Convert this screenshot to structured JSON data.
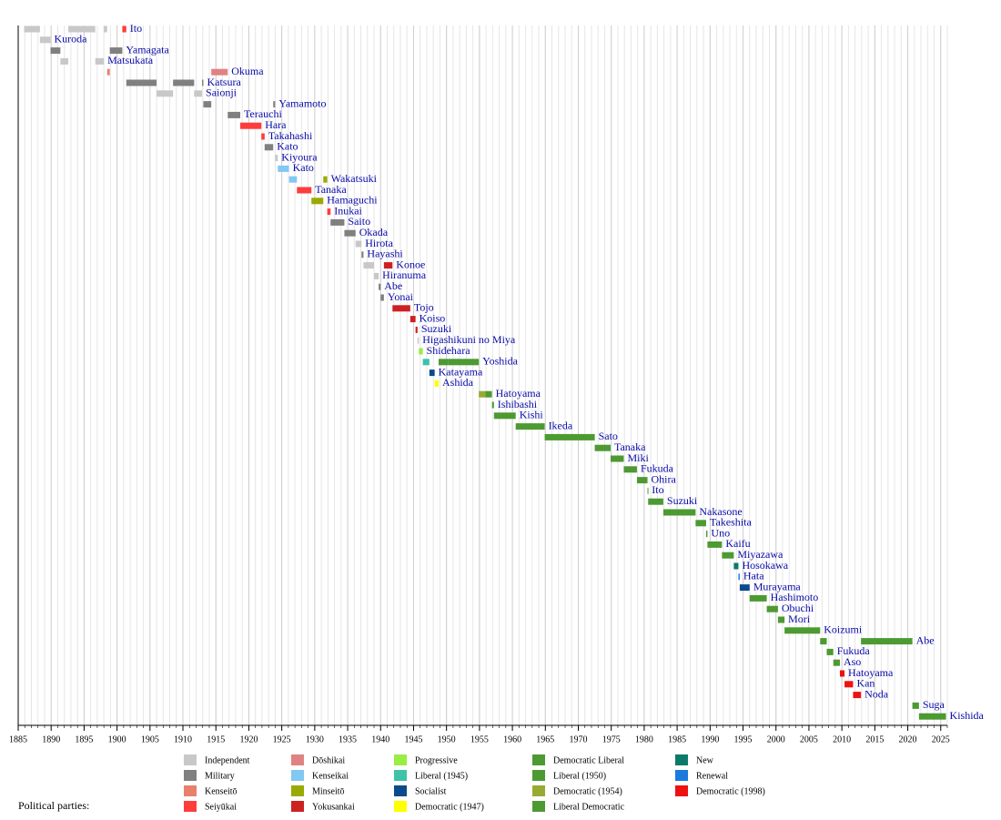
{
  "chart_data": {
    "type": "timeline",
    "xlim": [
      1885,
      2026
    ],
    "xticks": [
      1885,
      1890,
      1895,
      1900,
      1905,
      1910,
      1915,
      1920,
      1925,
      1930,
      1935,
      1940,
      1945,
      1950,
      1955,
      1960,
      1965,
      1970,
      1975,
      1980,
      1985,
      1990,
      1995,
      2000,
      2005,
      2010,
      2015,
      2020,
      2025
    ],
    "minor_grid": true,
    "legend_title": "Political parties:",
    "parties": [
      {
        "name": "Independent",
        "color": "#c8c8c8"
      },
      {
        "name": "Military",
        "color": "#808080"
      },
      {
        "name": "Kenseitō",
        "color": "#e8806c"
      },
      {
        "name": "Seiyūkai",
        "color": "#ff3c3c"
      },
      {
        "name": "Dōshikai",
        "color": "#e08282"
      },
      {
        "name": "Kenseikai",
        "color": "#82c8f2"
      },
      {
        "name": "Minseitō",
        "color": "#99aa00"
      },
      {
        "name": "Yokusankai",
        "color": "#cc2222"
      },
      {
        "name": "Progressive",
        "color": "#99ee44"
      },
      {
        "name": "Liberal (1945)",
        "color": "#3cc3aa"
      },
      {
        "name": "Socialist",
        "color": "#0b4a8c"
      },
      {
        "name": "Democratic (1947)",
        "color": "#ffff00"
      },
      {
        "name": "Democratic Liberal",
        "color": "#4d9a33"
      },
      {
        "name": "Liberal (1950)",
        "color": "#4d9a33"
      },
      {
        "name": "Democratic (1954)",
        "color": "#99aa33"
      },
      {
        "name": "Liberal Democratic",
        "color": "#4d9a33"
      },
      {
        "name": "New",
        "color": "#0b7a6a"
      },
      {
        "name": "Renewal",
        "color": "#1a7ade"
      },
      {
        "name": "Democratic (1998)",
        "color": "#ee1111"
      }
    ],
    "rows": [
      {
        "label": "Ito",
        "segments": [
          {
            "start": 1885.9,
            "end": 1888.3,
            "party": "Independent"
          },
          {
            "start": 1892.6,
            "end": 1896.7,
            "party": "Independent"
          },
          {
            "start": 1898.0,
            "end": 1898.5,
            "party": "Independent"
          },
          {
            "start": 1900.8,
            "end": 1901.4,
            "party": "Seiyūkai"
          }
        ]
      },
      {
        "label": "Kuroda",
        "segments": [
          {
            "start": 1888.3,
            "end": 1889.9,
            "party": "Independent"
          }
        ]
      },
      {
        "label": "Yamagata",
        "segments": [
          {
            "start": 1889.9,
            "end": 1891.4,
            "party": "Military"
          },
          {
            "start": 1898.9,
            "end": 1900.8,
            "party": "Military"
          }
        ]
      },
      {
        "label": "Matsukata",
        "segments": [
          {
            "start": 1891.4,
            "end": 1892.6,
            "party": "Independent"
          },
          {
            "start": 1896.7,
            "end": 1898.0,
            "party": "Independent"
          }
        ]
      },
      {
        "label": "Okuma",
        "segments": [
          {
            "start": 1898.5,
            "end": 1898.9,
            "party": "Kenseitō"
          },
          {
            "start": 1914.3,
            "end": 1916.8,
            "party": "Dōshikai"
          }
        ]
      },
      {
        "label": "Katsura",
        "segments": [
          {
            "start": 1901.4,
            "end": 1906.0,
            "party": "Military"
          },
          {
            "start": 1908.5,
            "end": 1911.7,
            "party": "Military"
          },
          {
            "start": 1912.9,
            "end": 1913.1,
            "party": "Military"
          }
        ]
      },
      {
        "label": "Saionji",
        "segments": [
          {
            "start": 1906.0,
            "end": 1908.5,
            "party": "Independent"
          },
          {
            "start": 1911.7,
            "end": 1912.9,
            "party": "Independent"
          }
        ]
      },
      {
        "label": "Yamamoto",
        "segments": [
          {
            "start": 1913.1,
            "end": 1914.3,
            "party": "Military"
          },
          {
            "start": 1923.7,
            "end": 1924.0,
            "party": "Military"
          }
        ]
      },
      {
        "label": "Terauchi",
        "segments": [
          {
            "start": 1916.8,
            "end": 1918.7,
            "party": "Military"
          }
        ]
      },
      {
        "label": "Hara",
        "segments": [
          {
            "start": 1918.7,
            "end": 1921.9,
            "party": "Seiyūkai"
          }
        ]
      },
      {
        "label": "Takahashi",
        "segments": [
          {
            "start": 1921.9,
            "end": 1922.4,
            "party": "Seiyūkai"
          }
        ]
      },
      {
        "label": "Kato",
        "segments": [
          {
            "start": 1922.4,
            "end": 1923.7,
            "party": "Military"
          }
        ]
      },
      {
        "label": "Kiyoura",
        "segments": [
          {
            "start": 1924.0,
            "end": 1924.4,
            "party": "Independent"
          }
        ]
      },
      {
        "label": "Kato",
        "segments": [
          {
            "start": 1924.4,
            "end": 1926.1,
            "party": "Kenseikai"
          }
        ]
      },
      {
        "label": "Wakatsuki",
        "segments": [
          {
            "start": 1926.1,
            "end": 1927.3,
            "party": "Kenseikai"
          },
          {
            "start": 1931.3,
            "end": 1931.9,
            "party": "Minseitō"
          }
        ]
      },
      {
        "label": "Tanaka",
        "segments": [
          {
            "start": 1927.3,
            "end": 1929.5,
            "party": "Seiyūkai"
          }
        ]
      },
      {
        "label": "Hamaguchi",
        "segments": [
          {
            "start": 1929.5,
            "end": 1931.3,
            "party": "Minseitō"
          }
        ]
      },
      {
        "label": "Inukai",
        "segments": [
          {
            "start": 1931.9,
            "end": 1932.4,
            "party": "Seiyūkai"
          }
        ]
      },
      {
        "label": "Saito",
        "segments": [
          {
            "start": 1932.4,
            "end": 1934.5,
            "party": "Military"
          }
        ]
      },
      {
        "label": "Okada",
        "segments": [
          {
            "start": 1934.5,
            "end": 1936.2,
            "party": "Military"
          }
        ]
      },
      {
        "label": "Hirota",
        "segments": [
          {
            "start": 1936.2,
            "end": 1937.1,
            "party": "Independent"
          }
        ]
      },
      {
        "label": "Hayashi",
        "segments": [
          {
            "start": 1937.1,
            "end": 1937.4,
            "party": "Military"
          }
        ]
      },
      {
        "label": "Konoe",
        "segments": [
          {
            "start": 1937.4,
            "end": 1939.0,
            "party": "Independent"
          },
          {
            "start": 1940.5,
            "end": 1941.8,
            "party": "Yokusankai"
          }
        ]
      },
      {
        "label": "Hiranuma",
        "segments": [
          {
            "start": 1939.0,
            "end": 1939.7,
            "party": "Independent"
          }
        ]
      },
      {
        "label": "Abe",
        "segments": [
          {
            "start": 1939.7,
            "end": 1940.0,
            "party": "Military"
          }
        ]
      },
      {
        "label": "Yonai",
        "segments": [
          {
            "start": 1940.0,
            "end": 1940.5,
            "party": "Military"
          }
        ]
      },
      {
        "label": "Tojo",
        "segments": [
          {
            "start": 1941.8,
            "end": 1944.5,
            "party": "Yokusankai"
          }
        ]
      },
      {
        "label": "Koiso",
        "segments": [
          {
            "start": 1944.5,
            "end": 1945.3,
            "party": "Yokusankai"
          }
        ]
      },
      {
        "label": "Suzuki",
        "segments": [
          {
            "start": 1945.3,
            "end": 1945.6,
            "party": "Yokusankai"
          }
        ]
      },
      {
        "label": "Higashikuni no Miya",
        "segments": [
          {
            "start": 1945.6,
            "end": 1945.8,
            "party": "Independent"
          }
        ]
      },
      {
        "label": "Shidehara",
        "segments": [
          {
            "start": 1945.8,
            "end": 1946.4,
            "party": "Progressive"
          }
        ]
      },
      {
        "label": "Yoshida",
        "segments": [
          {
            "start": 1946.4,
            "end": 1947.4,
            "party": "Liberal (1945)"
          },
          {
            "start": 1948.8,
            "end": 1950.2,
            "party": "Democratic Liberal"
          },
          {
            "start": 1950.2,
            "end": 1954.9,
            "party": "Liberal (1950)"
          }
        ]
      },
      {
        "label": "Katayama",
        "segments": [
          {
            "start": 1947.4,
            "end": 1948.2,
            "party": "Socialist"
          }
        ]
      },
      {
        "label": "Ashida",
        "segments": [
          {
            "start": 1948.2,
            "end": 1948.8,
            "party": "Democratic (1947)"
          }
        ]
      },
      {
        "label": "Hatoyama",
        "segments": [
          {
            "start": 1954.9,
            "end": 1955.9,
            "party": "Democratic (1954)"
          },
          {
            "start": 1955.9,
            "end": 1956.9,
            "party": "Liberal Democratic"
          }
        ]
      },
      {
        "label": "Ishibashi",
        "segments": [
          {
            "start": 1956.9,
            "end": 1957.2,
            "party": "Liberal Democratic"
          }
        ]
      },
      {
        "label": "Kishi",
        "segments": [
          {
            "start": 1957.2,
            "end": 1960.5,
            "party": "Liberal Democratic"
          }
        ]
      },
      {
        "label": "Ikeda",
        "segments": [
          {
            "start": 1960.5,
            "end": 1964.9,
            "party": "Liberal Democratic"
          }
        ]
      },
      {
        "label": "Sato",
        "segments": [
          {
            "start": 1964.9,
            "end": 1972.5,
            "party": "Liberal Democratic"
          }
        ]
      },
      {
        "label": "Tanaka",
        "segments": [
          {
            "start": 1972.5,
            "end": 1974.9,
            "party": "Liberal Democratic"
          }
        ]
      },
      {
        "label": "Miki",
        "segments": [
          {
            "start": 1974.9,
            "end": 1976.9,
            "party": "Liberal Democratic"
          }
        ]
      },
      {
        "label": "Fukuda",
        "segments": [
          {
            "start": 1976.9,
            "end": 1978.9,
            "party": "Liberal Democratic"
          }
        ]
      },
      {
        "label": "Ohira",
        "segments": [
          {
            "start": 1978.9,
            "end": 1980.5,
            "party": "Liberal Democratic"
          }
        ]
      },
      {
        "label": "Ito",
        "segments": [
          {
            "start": 1980.5,
            "end": 1980.6,
            "party": "Liberal Democratic"
          }
        ]
      },
      {
        "label": "Suzuki",
        "segments": [
          {
            "start": 1980.6,
            "end": 1982.9,
            "party": "Liberal Democratic"
          }
        ]
      },
      {
        "label": "Nakasone",
        "segments": [
          {
            "start": 1982.9,
            "end": 1987.8,
            "party": "Liberal Democratic"
          }
        ]
      },
      {
        "label": "Takeshita",
        "segments": [
          {
            "start": 1987.8,
            "end": 1989.4,
            "party": "Liberal Democratic"
          }
        ]
      },
      {
        "label": "Uno",
        "segments": [
          {
            "start": 1989.4,
            "end": 1989.6,
            "party": "Liberal Democratic"
          }
        ]
      },
      {
        "label": "Kaifu",
        "segments": [
          {
            "start": 1989.6,
            "end": 1991.8,
            "party": "Liberal Democratic"
          }
        ]
      },
      {
        "label": "Miyazawa",
        "segments": [
          {
            "start": 1991.8,
            "end": 1993.6,
            "party": "Liberal Democratic"
          }
        ]
      },
      {
        "label": "Hosokawa",
        "segments": [
          {
            "start": 1993.6,
            "end": 1994.3,
            "party": "New"
          }
        ]
      },
      {
        "label": "Hata",
        "segments": [
          {
            "start": 1994.3,
            "end": 1994.5,
            "party": "Renewal"
          }
        ]
      },
      {
        "label": "Murayama",
        "segments": [
          {
            "start": 1994.5,
            "end": 1996.0,
            "party": "Socialist"
          }
        ]
      },
      {
        "label": "Hashimoto",
        "segments": [
          {
            "start": 1996.0,
            "end": 1998.6,
            "party": "Liberal Democratic"
          }
        ]
      },
      {
        "label": "Obuchi",
        "segments": [
          {
            "start": 1998.6,
            "end": 2000.3,
            "party": "Liberal Democratic"
          }
        ]
      },
      {
        "label": "Mori",
        "segments": [
          {
            "start": 2000.3,
            "end": 2001.3,
            "party": "Liberal Democratic"
          }
        ]
      },
      {
        "label": "Koizumi",
        "segments": [
          {
            "start": 2001.3,
            "end": 2006.7,
            "party": "Liberal Democratic"
          }
        ]
      },
      {
        "label": "Abe",
        "segments": [
          {
            "start": 2006.7,
            "end": 2007.7,
            "party": "Liberal Democratic"
          },
          {
            "start": 2012.9,
            "end": 2020.7,
            "party": "Liberal Democratic"
          }
        ]
      },
      {
        "label": "Fukuda",
        "segments": [
          {
            "start": 2007.7,
            "end": 2008.7,
            "party": "Liberal Democratic"
          }
        ]
      },
      {
        "label": "Aso",
        "segments": [
          {
            "start": 2008.7,
            "end": 2009.7,
            "party": "Liberal Democratic"
          }
        ]
      },
      {
        "label": "Hatoyama",
        "segments": [
          {
            "start": 2009.7,
            "end": 2010.4,
            "party": "Democratic (1998)"
          }
        ]
      },
      {
        "label": "Kan",
        "segments": [
          {
            "start": 2010.4,
            "end": 2011.7,
            "party": "Democratic (1998)"
          }
        ]
      },
      {
        "label": "Noda",
        "segments": [
          {
            "start": 2011.7,
            "end": 2012.9,
            "party": "Democratic (1998)"
          }
        ]
      },
      {
        "label": "Suga",
        "segments": [
          {
            "start": 2020.7,
            "end": 2021.7,
            "party": "Liberal Democratic"
          }
        ]
      },
      {
        "label": "Kishida",
        "segments": [
          {
            "start": 2021.7,
            "end": 2025.8,
            "party": "Liberal Democratic"
          }
        ]
      }
    ]
  }
}
